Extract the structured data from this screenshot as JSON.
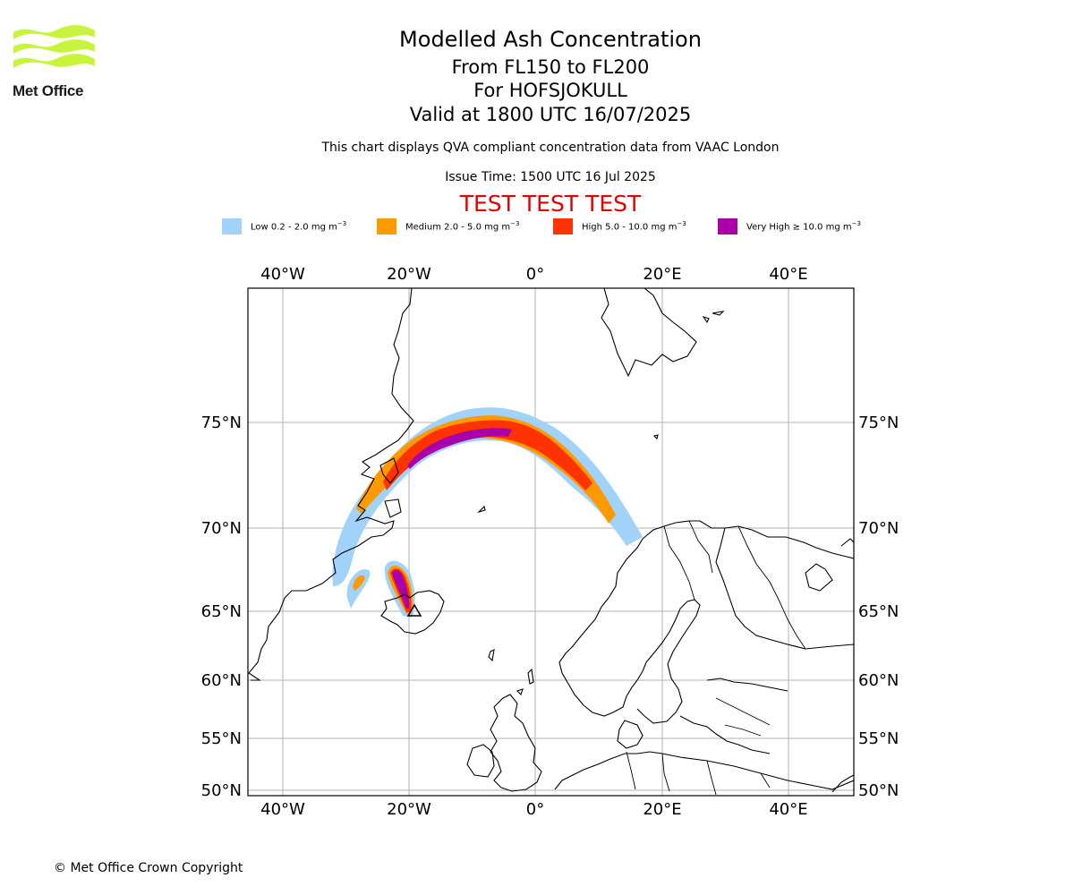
{
  "logo": {
    "text": "Met Office",
    "color": "#c8f53c"
  },
  "header": {
    "title": "Modelled Ash Concentration",
    "level_range": "From FL150 to FL200",
    "volcano": "For HOFSJOKULL",
    "valid_time": "Valid at 1800 UTC 16/07/2025",
    "description": "This chart displays QVA compliant concentration data from VAAC London",
    "issue_time": "Issue Time: 1500 UTC 16 Jul 2025",
    "test_banner": "TEST TEST TEST",
    "test_banner_color": "#e60000"
  },
  "legend": [
    {
      "color": "#a0d2fa",
      "label_prefix": "Low 0.2 - 2.0 mg m",
      "label_sup": "−3"
    },
    {
      "color": "#ff9900",
      "label_prefix": "Medium 2.0 - 5.0 mg m",
      "label_sup": "−3"
    },
    {
      "color": "#ff3300",
      "label_prefix": "High 5.0 - 10.0 mg m",
      "label_sup": "−3"
    },
    {
      "color": "#aa00aa",
      "label_prefix": "Very High  ≥  10.0 mg m",
      "label_sup": "−3"
    }
  ],
  "map": {
    "lon_labels": [
      "40°W",
      "20°W",
      "0°",
      "20°E",
      "40°E"
    ],
    "lat_labels": [
      "75°N",
      "70°N",
      "65°N",
      "60°N",
      "55°N",
      "50°N"
    ],
    "grid_color": "#b0b0b0",
    "coastline_color": "#000000"
  },
  "footer": {
    "copyright": "© Met Office Crown Copyright"
  }
}
